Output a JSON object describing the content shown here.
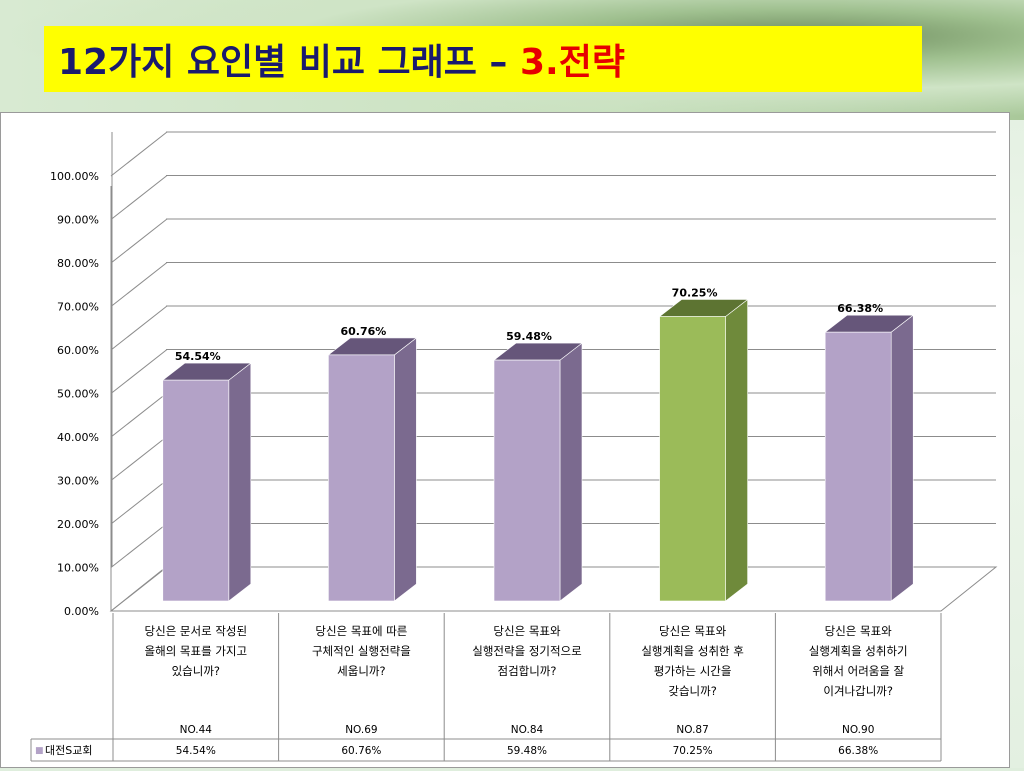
{
  "title": {
    "main": "12가지 요인별 비교 그래프 –",
    "accent": "3.전략"
  },
  "colors": {
    "title_bg": "#ffff00",
    "title_text": "#1a1a6e",
    "title_accent": "#e60000",
    "bar_default": "#b3a2c7",
    "bar_highlight": "#9bbb59"
  },
  "chart_data": {
    "type": "bar",
    "ylim": [
      0,
      100
    ],
    "y_ticks": [
      "0.00%",
      "10.00%",
      "20.00%",
      "30.00%",
      "40.00%",
      "50.00%",
      "60.00%",
      "70.00%",
      "80.00%",
      "90.00%",
      "100.00%"
    ],
    "categories": [
      {
        "question": [
          "당신은 문서로 작성된",
          "올해의 목표를 가지고",
          "있습니까?"
        ],
        "code": "NO.44"
      },
      {
        "question": [
          "당신은 목표에 따른",
          "구체적인 실행전략을",
          "세웁니까?"
        ],
        "code": "NO.69"
      },
      {
        "question": [
          "당신은 목표와",
          "실행전략을 정기적으로",
          "점검합니까?"
        ],
        "code": "NO.84"
      },
      {
        "question": [
          "당신은 목표와",
          "실행계획을 성취한 후",
          "평가하는 시간을",
          "갖습니까?"
        ],
        "code": "NO.87"
      },
      {
        "question": [
          "당신은 목표와",
          "실행계획을 성취하기",
          "위해서 어려움을 잘",
          "이겨나갑니까?"
        ],
        "code": "NO.90"
      }
    ],
    "values": [
      54.54,
      60.76,
      59.48,
      70.25,
      66.38
    ],
    "value_labels": [
      "54.54%",
      "60.76%",
      "59.48%",
      "70.25%",
      "66.38%"
    ],
    "highlight_index": 3,
    "series": [
      {
        "name": "대전S교회",
        "values": [
          54.54,
          60.76,
          59.48,
          70.25,
          66.38
        ]
      }
    ],
    "legend_marker": "■",
    "grid": true
  }
}
